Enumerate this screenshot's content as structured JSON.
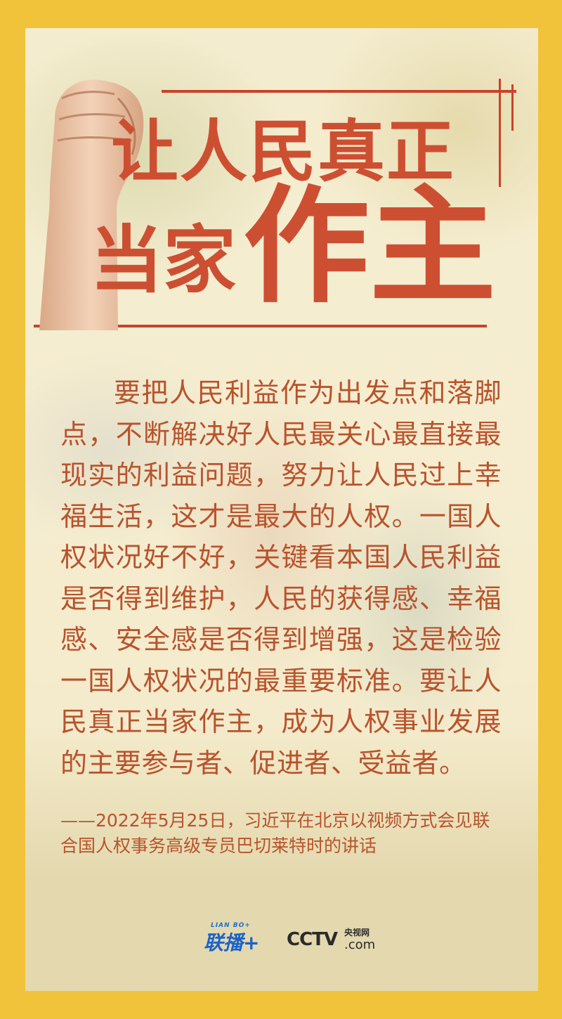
{
  "poster": {
    "title_line1": "让人民真正",
    "title_line2a": "当家",
    "title_line2b": "作主",
    "body": "要把人民利益作为出发点和落脚点，不断解决好人民最关心最直接最现实的利益问题，努力让人民过上幸福生活，这才是最大的人权。一国人权状况好不好，关键看本国人民利益是否得到维护，人民的获得感、幸福感、安全感是否得到增强，这是检验一国人权状况的最重要标准。要让人民真正当家作主，成为人权事业发展的主要参与者、促进者、受益者。",
    "source": "——2022年5月25日，习近平在北京以视频方式会见联合国人权事务高级专员巴切莱特时的讲话"
  },
  "logos": {
    "lianbo_small": "LIAN BO+",
    "lianbo_big": "联播+",
    "cctv": "CCTV",
    "cctv_cn": "央视网",
    "cctv_com": ".com"
  },
  "colors": {
    "frame": "#f1c33a",
    "title": "#cd4f32",
    "body_text": "#b8532c",
    "rule": "#c8432b"
  },
  "icons": [
    "raised-fist-image",
    "lianbo-logo",
    "cctv-logo"
  ]
}
